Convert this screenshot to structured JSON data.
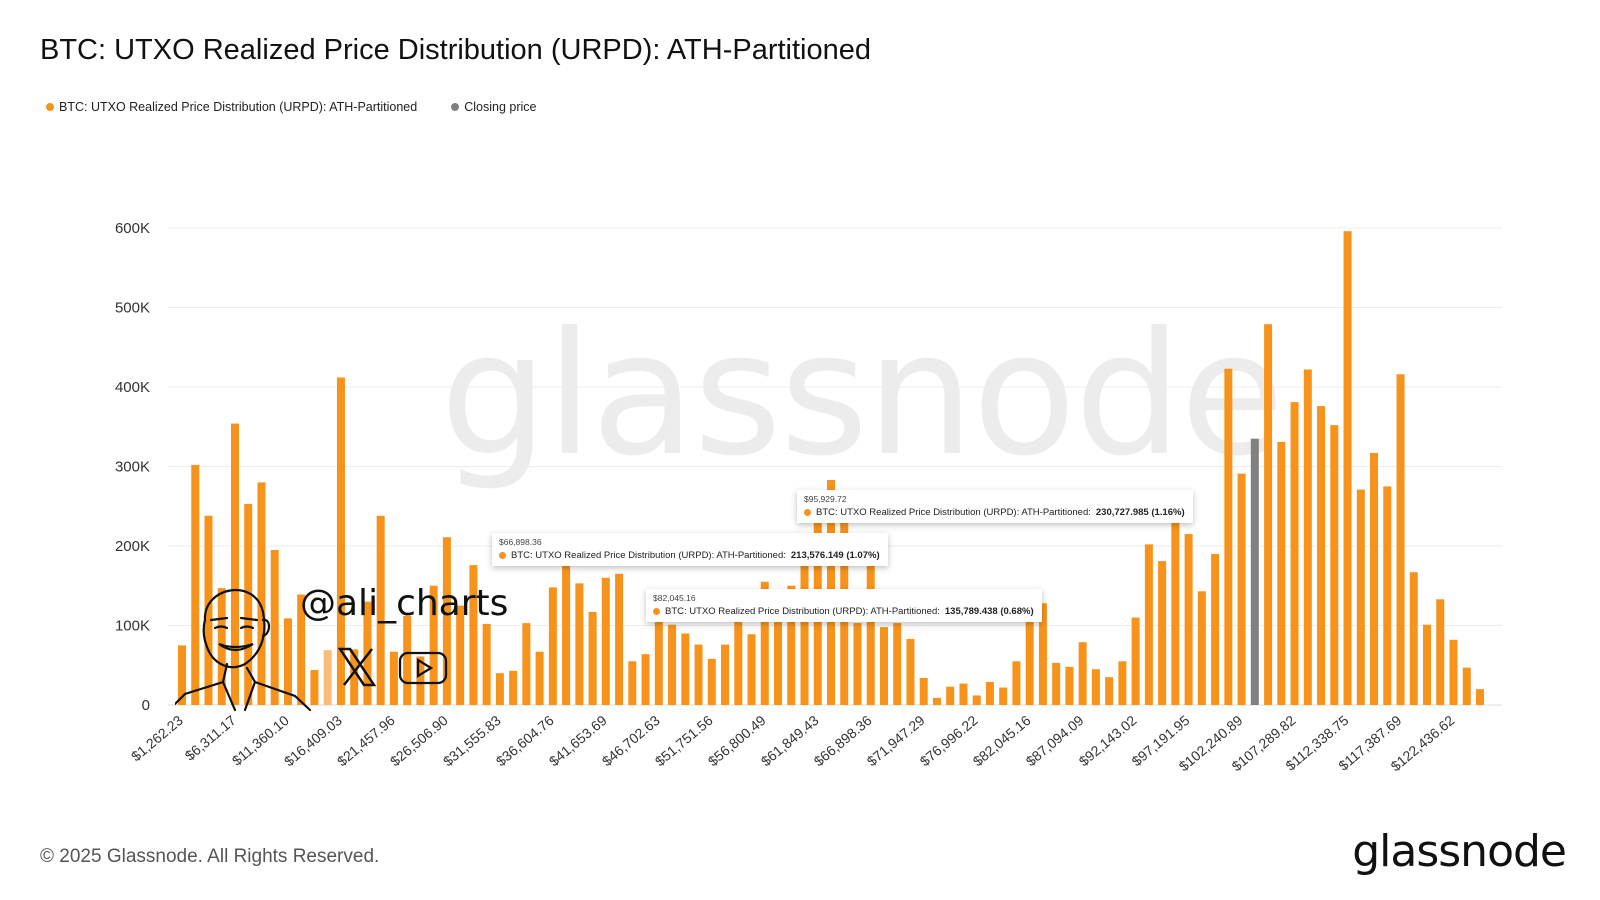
{
  "title": "BTC: UTXO Realized Price Distribution (URPD): ATH-Partitioned",
  "legend": [
    {
      "label": "BTC: UTXO Realized Price Distribution (URPD): ATH-Partitioned",
      "color": "#f7931a"
    },
    {
      "label": "Closing price",
      "color": "#808080"
    }
  ],
  "watermark": "glassnode",
  "author_overlay": {
    "handle": "@ali_charts",
    "icons": [
      "x-logo-icon",
      "youtube-icon"
    ]
  },
  "tooltips": [
    {
      "price": "$66,898.36",
      "series": "BTC: UTXO Realized Price Distribution (URPD): ATH-Partitioned:",
      "value": "213,576.149 (1.07%)"
    },
    {
      "price": "$82,045.16",
      "series": "BTC: UTXO Realized Price Distribution (URPD): ATH-Partitioned:",
      "value": "135,789.438 (0.68%)"
    },
    {
      "price": "$95,929.72",
      "series": "BTC: UTXO Realized Price Distribution (URPD): ATH-Partitioned:",
      "value": "230,727.985 (1.16%)"
    }
  ],
  "footer": {
    "copyright": "© 2025 Glassnode. All Rights Reserved.",
    "logo": "glassnode"
  },
  "chart_data": {
    "type": "bar",
    "title": "BTC: UTXO Realized Price Distribution (URPD): ATH-Partitioned",
    "xlabel": "",
    "ylabel": "",
    "ylim": [
      0,
      600000
    ],
    "y_ticks": [
      "0",
      "100K",
      "200K",
      "300K",
      "400K",
      "500K",
      "600K"
    ],
    "grid": true,
    "legend_position": "top-left",
    "bin_width": 1262.23,
    "x_ticks": [
      "$1,262.23",
      "$6,311.17",
      "$11,360.10",
      "$16,409.03",
      "$21,457.96",
      "$26,506.90",
      "$31,555.83",
      "$36,604.76",
      "$41,653.69",
      "$46,702.63",
      "$51,751.56",
      "$56,800.49",
      "$61,849.43",
      "$66,898.36",
      "$71,947.29",
      "$76,996.22",
      "$82,045.16",
      "$87,094.09",
      "$92,143.02",
      "$97,191.95",
      "$102,240.89",
      "$107,289.82",
      "$112,338.75",
      "$117,387.69",
      "$122,436.62"
    ],
    "x_tick_every": 4,
    "series": [
      {
        "name": "BTC: UTXO Realized Price Distribution (URPD): ATH-Partitioned",
        "color": "#f7931a",
        "values": [
          75000,
          302000,
          238000,
          147000,
          354000,
          253000,
          280000,
          195000,
          109000,
          139000,
          44000,
          69000,
          412000,
          70000,
          130000,
          238000,
          67000,
          112000,
          61000,
          150000,
          211000,
          125000,
          176000,
          102000,
          40000,
          43000,
          103000,
          67000,
          148000,
          182000,
          153000,
          117000,
          160000,
          165000,
          55000,
          64000,
          115000,
          101000,
          90000,
          76000,
          58000,
          76000,
          110000,
          89000,
          155000,
          140000,
          150000,
          200000,
          230000,
          283000,
          230000,
          103000,
          213576,
          98000,
          103000,
          83000,
          34000,
          9000,
          23000,
          27000,
          12000,
          29000,
          22000,
          55000,
          135789,
          128000,
          53000,
          48000,
          79000,
          45000,
          35000,
          55000,
          110000,
          202000,
          181000,
          230728,
          215000,
          143000,
          190000,
          423000,
          291000,
          335000,
          479000,
          331000,
          381000,
          422000,
          376000,
          352000,
          596000,
          271000,
          317000,
          275000,
          416000,
          167000,
          101000,
          133000,
          82000,
          47000,
          20000
        ]
      },
      {
        "name": "Closing price",
        "color": "#808080",
        "bin": 82
      }
    ],
    "faded_bin": 12
  }
}
